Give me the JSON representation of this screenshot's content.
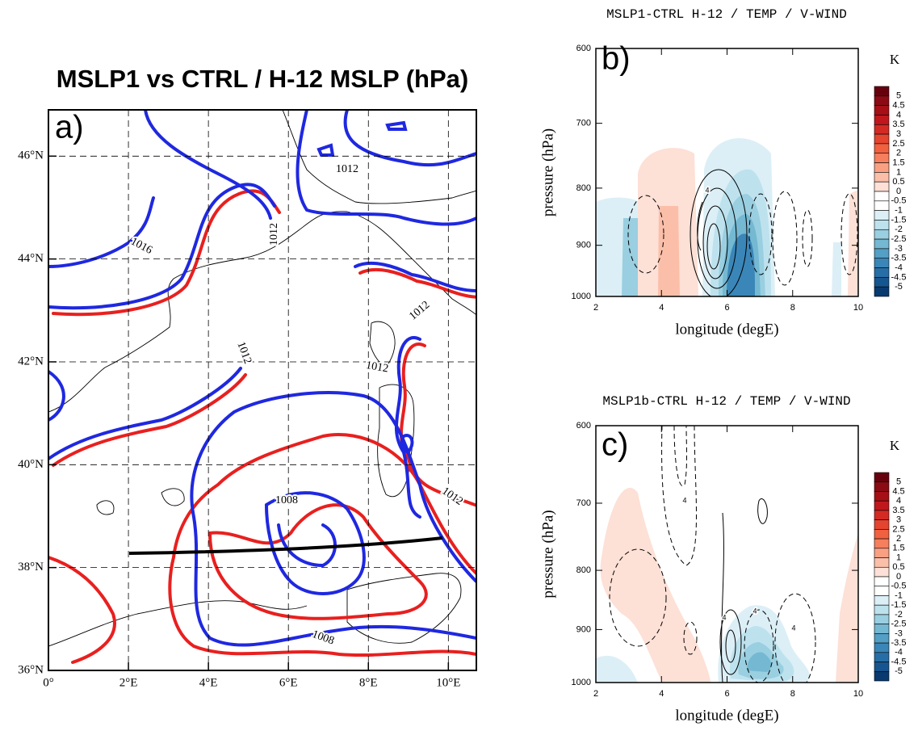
{
  "chart_data": [
    {
      "type": "map",
      "title": "MSLP1 vs CTRL / H-12 MSLP (hPa)",
      "panel_label": "a)",
      "xlim": [
        0,
        10.7
      ],
      "xticks": [
        {
          "value": 0,
          "label": "0°"
        },
        {
          "value": 2,
          "label": "2°E"
        },
        {
          "value": 4,
          "label": "4°E"
        },
        {
          "value": 6,
          "label": "6°E"
        },
        {
          "value": 8,
          "label": "8°E"
        },
        {
          "value": 10,
          "label": "10°E"
        }
      ],
      "ylim": [
        36,
        46.9
      ],
      "yticks": [
        {
          "value": 36,
          "label": "36°N"
        },
        {
          "value": 38,
          "label": "38°N"
        },
        {
          "value": 40,
          "label": "40°N"
        },
        {
          "value": 42,
          "label": "42°N"
        },
        {
          "value": 44,
          "label": "44°N"
        },
        {
          "value": 46,
          "label": "46°N"
        }
      ],
      "grid": true,
      "line_colors": [
        "#e8201f",
        "#1f28e0"
      ],
      "contour_labels": [
        1016,
        1012,
        1012,
        1012,
        1012,
        1012,
        1012,
        1008,
        1008
      ]
    },
    {
      "type": "cross-section",
      "title": "MSLP1-CTRL H-12 / TEMP / V-WIND",
      "panel_label": "b)",
      "xlabel": "longitude (degE)",
      "ylabel": "pressure (hPa)",
      "xlim": [
        2,
        10
      ],
      "xticks": [
        2,
        4,
        6,
        8,
        10
      ],
      "ylim": [
        1000,
        600
      ],
      "yticks": [
        600,
        700,
        800,
        900,
        1000
      ],
      "log_y": true,
      "contour_labels": [
        4
      ],
      "colorbar": {
        "unit": "K",
        "levels": [
          5,
          4.5,
          4,
          3.5,
          3,
          2.5,
          2,
          1.5,
          1,
          0.5,
          0,
          -0.5,
          -1,
          -1.5,
          -2,
          -2.5,
          -3,
          -3.5,
          -4,
          -4.5,
          -5
        ],
        "colors": [
          "#67000d",
          "#8b0a14",
          "#a50f15",
          "#c0171c",
          "#d42a24",
          "#e5442f",
          "#f1603f",
          "#f67f5d",
          "#f9a083",
          "#fbbfa9",
          "#fde0d6",
          "#ffffff",
          "#ffffff",
          "#dceff6",
          "#bde2ee",
          "#99cfe0",
          "#74b8d2",
          "#539fc5",
          "#3a86b8",
          "#276ea6",
          "#165690",
          "#083a70"
        ]
      }
    },
    {
      "type": "cross-section",
      "title": "MSLP1b-CTRL H-12 / TEMP / V-WIND",
      "panel_label": "c)",
      "xlabel": "longitude (degE)",
      "ylabel": "pressure (hPa)",
      "xlim": [
        2,
        10
      ],
      "xticks": [
        2,
        4,
        6,
        8,
        10
      ],
      "ylim": [
        1000,
        600
      ],
      "yticks": [
        600,
        700,
        800,
        900,
        1000
      ],
      "log_y": true,
      "contour_labels": [
        4,
        4,
        4,
        4
      ],
      "colorbar": {
        "unit": "K",
        "levels": [
          5,
          4.5,
          4,
          3.5,
          3,
          2.5,
          2,
          1.5,
          1,
          0.5,
          0,
          -0.5,
          -1,
          -1.5,
          -2,
          -2.5,
          -3,
          -3.5,
          -4,
          -4.5,
          -5
        ],
        "colors": [
          "#67000d",
          "#8b0a14",
          "#a50f15",
          "#c0171c",
          "#d42a24",
          "#e5442f",
          "#f1603f",
          "#f67f5d",
          "#f9a083",
          "#fbbfa9",
          "#fde0d6",
          "#ffffff",
          "#ffffff",
          "#dceff6",
          "#bde2ee",
          "#99cfe0",
          "#74b8d2",
          "#539fc5",
          "#3a86b8",
          "#276ea6",
          "#165690",
          "#083a70"
        ]
      }
    }
  ]
}
